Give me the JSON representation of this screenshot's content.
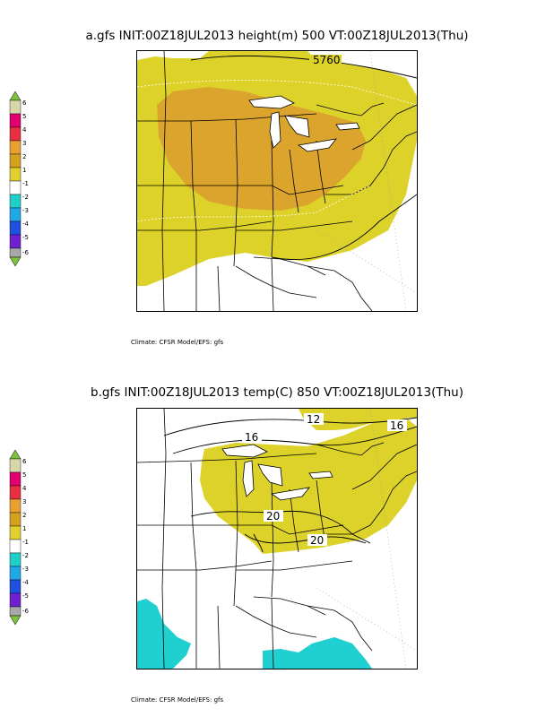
{
  "panels": [
    {
      "title": "a.gfs INIT:00Z18JUL2013 height(m) 500 VT:00Z18JUL2013(Thu)",
      "credit": "Climate: CFSR Model/EFS: gfs",
      "contour_label": "5760"
    },
    {
      "title": "b.gfs INIT:00Z18JUL2013 temp(C) 850 VT:00Z18JUL2013(Thu)",
      "credit": "Climate: CFSR Model/EFS: gfs",
      "contour_labels": [
        "12",
        "16",
        "16",
        "20",
        "20"
      ]
    }
  ],
  "colorbar": {
    "labels": [
      "6",
      "5",
      "4",
      "3",
      "2",
      "1",
      "-1",
      "-2",
      "-3",
      "-4",
      "-5",
      "-6"
    ],
    "colors": {
      "top_arrow": "#7cc23c",
      "6": "#d7d7a8",
      "5": "#e00070",
      "4": "#e83040",
      "3": "#e8a030",
      "2": "#d4a020",
      "1": "#e0d030",
      "neutral": "#ffffff",
      "-1": "#20d0c8",
      "-2": "#20a8e8",
      "-3": "#2050e0",
      "-4": "#7020d0",
      "-5": "#a8a8a8",
      "bottom_arrow": "#7cc23c"
    }
  },
  "colors": {
    "anomaly_1": "#dcd22a",
    "anomaly_2": "#dba52d",
    "anomaly_neg1": "#20cfcf",
    "lines": "#000000"
  }
}
